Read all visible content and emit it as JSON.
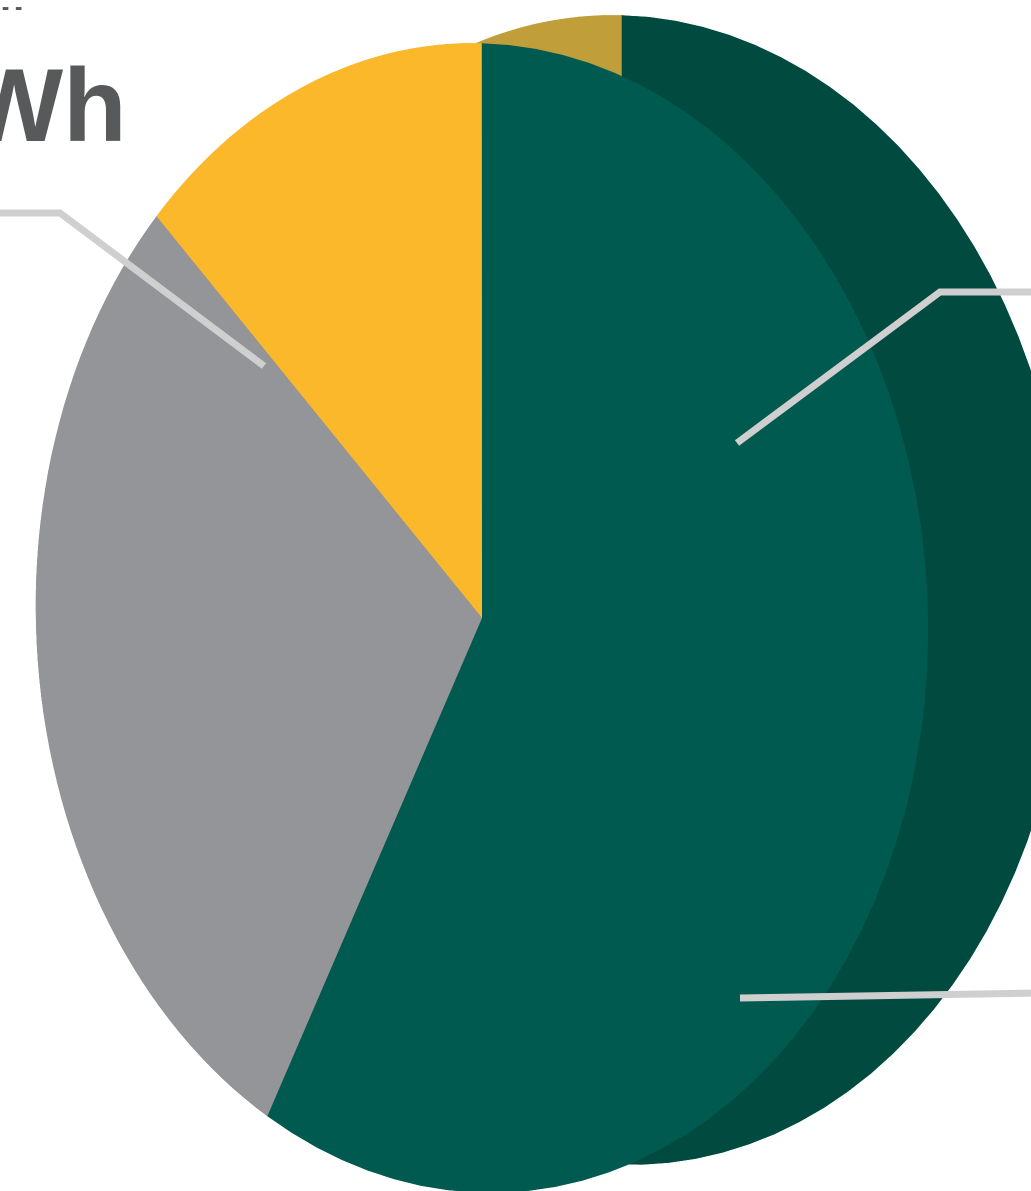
{
  "chart_data": {
    "type": "pie",
    "style": "3d-exploded",
    "title_fragment": "Wh",
    "title_fragment_top": "..",
    "slices": [
      {
        "value": 58,
        "color": "#005a4f",
        "side_color": "#004a40"
      },
      {
        "value": 29,
        "color": "#949598",
        "side_color": "#757575"
      },
      {
        "value": 13,
        "color": "#fbb82b",
        "side_color": "#c09f3b"
      }
    ],
    "leader_line_color": "#cfcfcf",
    "legend": "none"
  }
}
